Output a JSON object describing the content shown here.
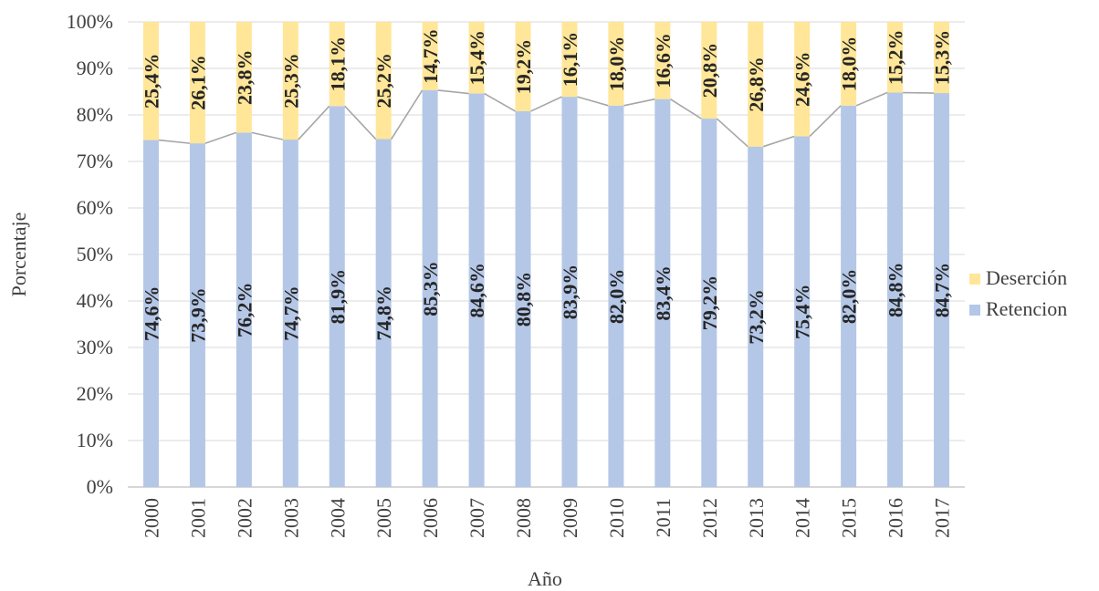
{
  "chart_data": {
    "type": "bar",
    "stacked": true,
    "orientation": "vertical",
    "categories": [
      "2000",
      "2001",
      "2002",
      "2003",
      "2004",
      "2005",
      "2006",
      "2007",
      "2008",
      "2009",
      "2010",
      "2011",
      "2012",
      "2013",
      "2014",
      "2015",
      "2016",
      "2017"
    ],
    "series": [
      {
        "name": "Retencion",
        "color": "#b4c7e7",
        "values": [
          74.6,
          73.9,
          76.2,
          74.7,
          81.9,
          74.8,
          85.3,
          84.6,
          80.8,
          83.9,
          82.0,
          83.4,
          79.2,
          73.2,
          75.4,
          82.0,
          84.8,
          84.7
        ],
        "labels": [
          "74,6%",
          "73,9%",
          "76,2%",
          "74,7%",
          "81,9%",
          "74,8%",
          "85,3%",
          "84,6%",
          "80,8%",
          "83,9%",
          "82,0%",
          "83,4%",
          "79,2%",
          "73,2%",
          "75,4%",
          "82,0%",
          "84,8%",
          "84,7%"
        ]
      },
      {
        "name": "Deserción",
        "color": "#ffe699",
        "values": [
          25.4,
          26.1,
          23.8,
          25.3,
          18.1,
          25.2,
          14.7,
          15.4,
          19.2,
          16.1,
          18.0,
          16.6,
          20.8,
          26.8,
          24.6,
          18.0,
          15.2,
          15.3
        ],
        "labels": [
          "25,4%",
          "26,1%",
          "23,8%",
          "25,3%",
          "18,1%",
          "25,2%",
          "14,7%",
          "15,4%",
          "19,2%",
          "16,1%",
          "18,0%",
          "16,6%",
          "20,8%",
          "26,8%",
          "24,6%",
          "18,0%",
          "15,2%",
          "15,3%"
        ]
      }
    ],
    "series_line_color": "#a6a6a6",
    "xlabel": "Año",
    "ylabel": "Porcentaje",
    "ylim": [
      0,
      100
    ],
    "yticks": [
      "0%",
      "10%",
      "20%",
      "30%",
      "40%",
      "50%",
      "60%",
      "70%",
      "80%",
      "90%",
      "100%"
    ],
    "grid": true,
    "legend_position": "right",
    "legend_order": [
      "Deserción",
      "Retencion"
    ]
  }
}
